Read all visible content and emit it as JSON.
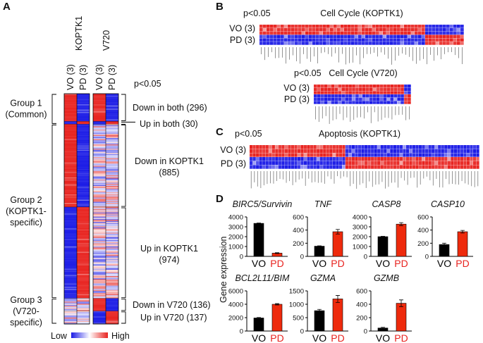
{
  "colors": {
    "high": "#e8231f",
    "low": "#1c1ce6",
    "bar_vo": "#000000",
    "bar_pd": "#ee2a0c",
    "pd_label": "#e8231f"
  },
  "panelA": {
    "letter": "A",
    "cell_lines": [
      "KOPTK1",
      "V720"
    ],
    "columns": [
      "VO (3)",
      "PD (3)",
      "VO (3)",
      "PD (3)"
    ],
    "pvalue": "p<0.05",
    "segments": [
      {
        "label": "Down in both (296)",
        "count": 296,
        "states": [
          "high",
          "low",
          "high",
          "low"
        ]
      },
      {
        "label": "Up in both (30)",
        "count": 30,
        "states": [
          "low",
          "high",
          "low",
          "high"
        ]
      },
      {
        "label": "Down in KOPTK1 (885)",
        "label_lines": [
          "Down in KOPTK1",
          "(885)"
        ],
        "count": 885,
        "states": [
          "high",
          "low",
          "mixed",
          "mixed"
        ]
      },
      {
        "label": "Up in KOPTK1 (974)",
        "label_lines": [
          "Up in KOPTK1",
          "(974)"
        ],
        "count": 974,
        "states": [
          "low",
          "high",
          "mixed",
          "mixed"
        ]
      },
      {
        "label": "Down in V720 (136)",
        "count": 136,
        "states": [
          "mixed",
          "mixed",
          "high",
          "low"
        ]
      },
      {
        "label": "Up in V720 (137)",
        "count": 137,
        "states": [
          "mixed",
          "mixed",
          "low",
          "high"
        ]
      }
    ],
    "groups": [
      {
        "lines": [
          "Group 1",
          "(Common)"
        ]
      },
      {
        "lines": [
          "Group 2",
          "(KOPTK1-",
          "specific)"
        ]
      },
      {
        "lines": [
          "Group 3",
          "(V720-",
          "specific)"
        ]
      }
    ],
    "legend": {
      "low": "Low",
      "high": "High"
    }
  },
  "panelB": {
    "letter": "B",
    "heatmaps": [
      {
        "pvalue": "p<0.05",
        "title": "Cell Cycle (KOPTK1)",
        "rows": [
          "VO (3)",
          "PD (3)"
        ],
        "n_genes": 58,
        "n_down": 47
      },
      {
        "pvalue": "p<0.05",
        "title": "Cell Cycle (V720)",
        "rows": [
          "VO (3)",
          "PD (3)"
        ],
        "n_genes": 28,
        "n_down": 26
      }
    ]
  },
  "panelC": {
    "letter": "C",
    "heatmap": {
      "pvalue": "p<0.05",
      "title": "Apoptosis (KOPTK1)",
      "rows": [
        "VO (3)",
        "PD (3)"
      ],
      "n_genes": 72,
      "n_down": 30
    }
  },
  "panelD": {
    "letter": "D",
    "ylabel": "Gene expression",
    "chart_data": [
      {
        "type": "bar",
        "title": "BIRC5/Survivin",
        "categories": [
          "VO",
          "PD"
        ],
        "values": [
          3350,
          330
        ],
        "errors": [
          30,
          40
        ],
        "ylim": [
          0,
          4000
        ],
        "yticks": [
          0,
          1000,
          2000,
          3000,
          4000
        ]
      },
      {
        "type": "bar",
        "title": "TNF",
        "categories": [
          "VO",
          "PD"
        ],
        "values": [
          155,
          375
        ],
        "errors": [
          5,
          35
        ],
        "ylim": [
          0,
          600
        ],
        "yticks": [
          0,
          200,
          400,
          600
        ]
      },
      {
        "type": "bar",
        "title": "CASP8",
        "categories": [
          "VO",
          "PD"
        ],
        "values": [
          2000,
          3270
        ],
        "errors": [
          30,
          150
        ],
        "ylim": [
          0,
          4000
        ],
        "yticks": [
          0,
          1000,
          2000,
          3000,
          4000
        ]
      },
      {
        "type": "bar",
        "title": "CASP10",
        "categories": [
          "VO",
          "PD"
        ],
        "values": [
          180,
          375
        ],
        "errors": [
          20,
          20
        ],
        "ylim": [
          0,
          600
        ],
        "yticks": [
          0,
          200,
          400,
          600
        ]
      },
      {
        "type": "bar",
        "title": "BCL2L11/BIM",
        "categories": [
          "VO",
          "PD"
        ],
        "values": [
          1950,
          4000
        ],
        "errors": [
          80,
          100
        ],
        "ylim": [
          0,
          6000
        ],
        "yticks": [
          0,
          2000,
          4000,
          6000
        ]
      },
      {
        "type": "bar",
        "title": "GZMA",
        "categories": [
          "VO",
          "PD"
        ],
        "values": [
          760,
          1200
        ],
        "errors": [
          50,
          130
        ],
        "ylim": [
          0,
          1500
        ],
        "yticks": [
          0,
          500,
          1000,
          1500
        ]
      },
      {
        "type": "bar",
        "title": "GZMB",
        "categories": [
          "VO",
          "PD"
        ],
        "values": [
          45,
          415
        ],
        "errors": [
          10,
          50
        ],
        "ylim": [
          0,
          600
        ],
        "yticks": [
          0,
          200,
          400,
          600
        ]
      }
    ]
  }
}
